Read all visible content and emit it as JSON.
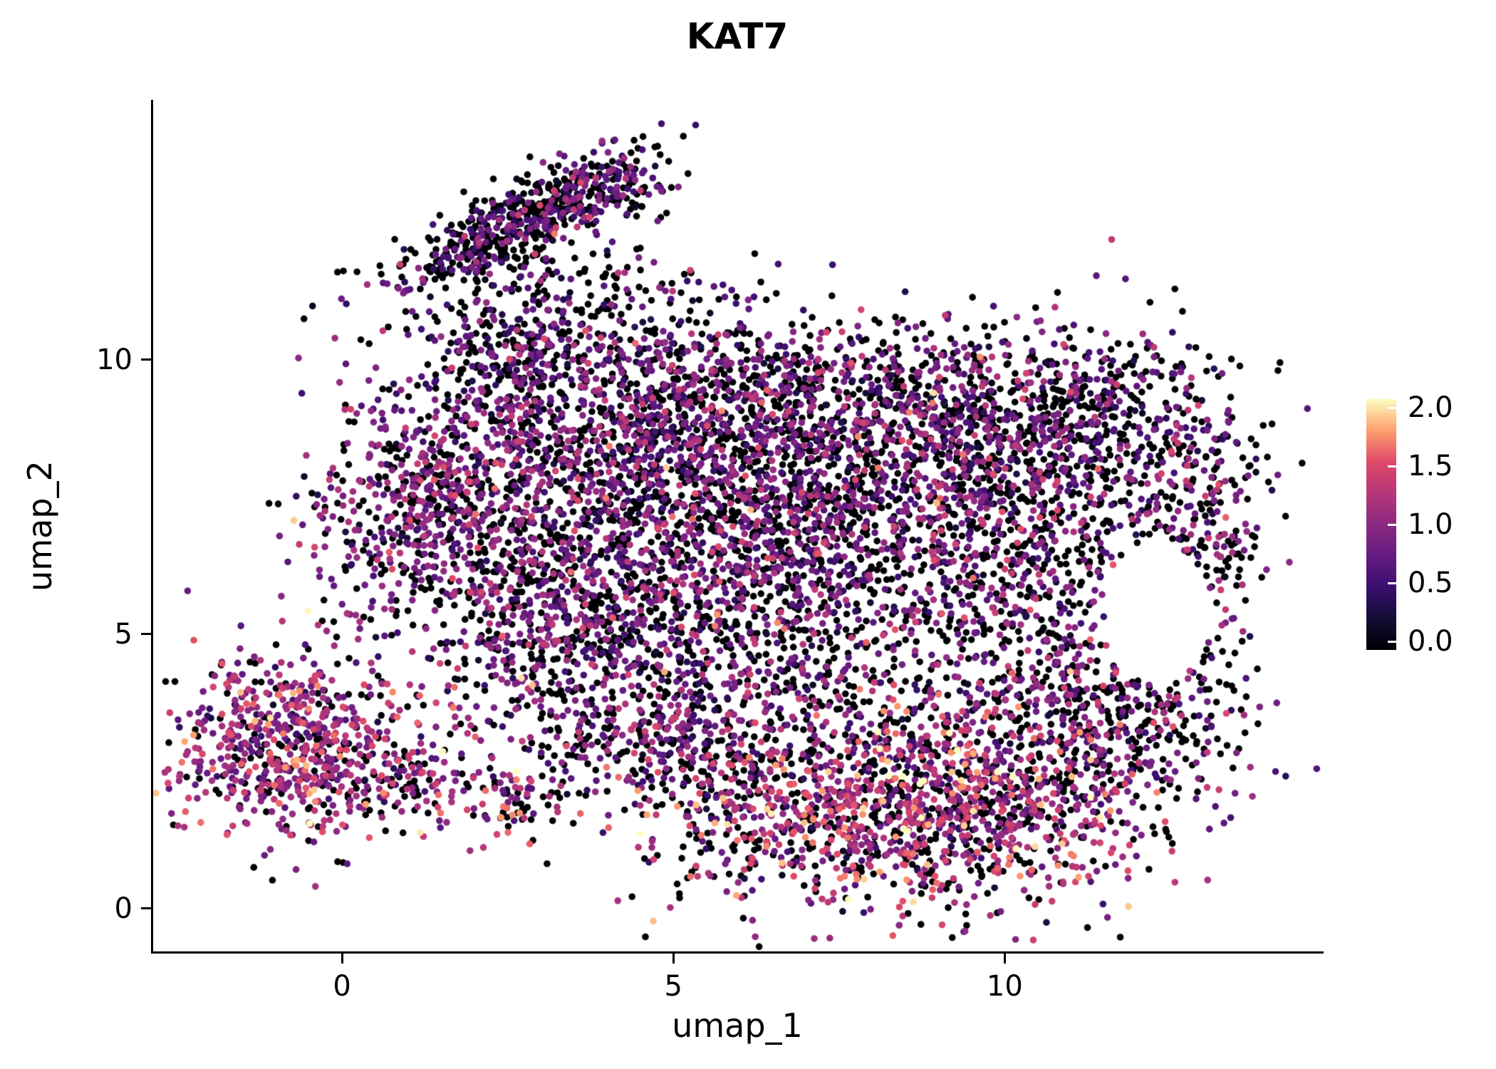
{
  "title": "KAT7",
  "chart_data": {
    "type": "scatter",
    "title": "KAT7",
    "xlabel": "umap_1",
    "ylabel": "umap_2",
    "xlim": [
      -2.85,
      14.78
    ],
    "ylim": [
      -0.78,
      14.74
    ],
    "xticks": {
      "values": [
        0,
        5,
        10
      ],
      "labels": [
        "0",
        "5",
        "10"
      ]
    },
    "yticks": {
      "values": [
        0,
        5,
        10
      ],
      "labels": [
        "0",
        "5",
        "10"
      ]
    },
    "grid": false,
    "legend_position": "right",
    "point_radius_px": 4.8,
    "seed": 20,
    "colorbar": {
      "vmin": 0,
      "vmax": 2,
      "tick_values": [
        2.0,
        1.5,
        1.0,
        0.5,
        0.0
      ],
      "tick_labels": [
        "2.0",
        "1.5",
        "1.0",
        "0.5",
        "0.0"
      ]
    },
    "colormap": {
      "name": "magma",
      "stops": [
        {
          "t": 0.0,
          "color": "#000004"
        },
        {
          "t": 0.125,
          "color": "#140e36"
        },
        {
          "t": 0.25,
          "color": "#3b0f70"
        },
        {
          "t": 0.375,
          "color": "#641a80"
        },
        {
          "t": 0.5,
          "color": "#8c2981"
        },
        {
          "t": 0.625,
          "color": "#b73779"
        },
        {
          "t": 0.75,
          "color": "#de4968"
        },
        {
          "t": 0.875,
          "color": "#fe9f6d"
        },
        {
          "t": 1.0,
          "color": "#fcfdbf"
        }
      ]
    },
    "holes": [
      {
        "cx": 12.3,
        "cy": 5.4,
        "rx": 0.8,
        "ry": 1.3
      }
    ],
    "clusters": [
      {
        "name": "top-arm",
        "cx": 2.55,
        "cy": 12.4,
        "sx": 1.05,
        "sy": 0.34,
        "rot": 33,
        "n": 520,
        "p0": 0.55,
        "mu": 0.7,
        "sigma": 0.3
      },
      {
        "name": "arm-head",
        "cx": 3.95,
        "cy": 13.1,
        "sx": 0.45,
        "sy": 0.3,
        "rot": 20,
        "n": 140,
        "p0": 0.5,
        "mu": 0.75,
        "sigma": 0.3
      },
      {
        "name": "arm-trail",
        "cx": 3.5,
        "cy": 10.9,
        "sx": 0.95,
        "sy": 0.6,
        "rot": 25,
        "n": 150,
        "p0": 0.6,
        "mu": 0.65,
        "sigma": 0.3
      },
      {
        "name": "arm-right-dots",
        "cx": 5.3,
        "cy": 10.9,
        "sx": 0.5,
        "sy": 0.5,
        "rot": 0,
        "n": 28,
        "p0": 0.6,
        "mu": 0.6,
        "sigma": 0.3
      },
      {
        "name": "neck",
        "cx": 2.6,
        "cy": 10.0,
        "sx": 0.65,
        "sy": 0.55,
        "rot": 0,
        "n": 170,
        "p0": 0.55,
        "mu": 0.7,
        "sigma": 0.3
      },
      {
        "name": "left-lobe",
        "cx": 1.5,
        "cy": 7.3,
        "sx": 0.95,
        "sy": 1.05,
        "rot": 0,
        "n": 620,
        "p0": 0.38,
        "mu": 0.9,
        "sigma": 0.3
      },
      {
        "name": "upper-mid",
        "cx": 4.4,
        "cy": 8.5,
        "sx": 1.5,
        "sy": 1.05,
        "rot": 0,
        "n": 950,
        "p0": 0.44,
        "mu": 0.82,
        "sigma": 0.32
      },
      {
        "name": "top-edge",
        "cx": 7.0,
        "cy": 9.6,
        "sx": 2.2,
        "sy": 0.55,
        "rot": 0,
        "n": 430,
        "p0": 0.5,
        "mu": 0.78,
        "sigma": 0.3
      },
      {
        "name": "center",
        "cx": 6.2,
        "cy": 6.3,
        "sx": 1.9,
        "sy": 1.6,
        "rot": 0,
        "n": 1450,
        "p0": 0.44,
        "mu": 0.82,
        "sigma": 0.33
      },
      {
        "name": "upper-right",
        "cx": 8.9,
        "cy": 8.1,
        "sx": 1.9,
        "sy": 1.15,
        "rot": 0,
        "n": 1150,
        "p0": 0.44,
        "mu": 0.82,
        "sigma": 0.33
      },
      {
        "name": "right-top-corner",
        "cx": 11.2,
        "cy": 9.0,
        "sx": 1.1,
        "sy": 0.8,
        "rot": 0,
        "n": 380,
        "p0": 0.55,
        "mu": 0.72,
        "sigma": 0.3
      },
      {
        "name": "far-right",
        "cx": 12.85,
        "cy": 6.4,
        "sx": 0.55,
        "sy": 1.5,
        "rot": 0,
        "n": 300,
        "p0": 0.5,
        "mu": 0.82,
        "sigma": 0.32
      },
      {
        "name": "right-mid",
        "cx": 10.4,
        "cy": 5.4,
        "sx": 0.95,
        "sy": 1.15,
        "rot": 0,
        "n": 430,
        "p0": 0.5,
        "mu": 0.8,
        "sigma": 0.32
      },
      {
        "name": "right-lower-arc",
        "cx": 11.7,
        "cy": 3.5,
        "sx": 1.0,
        "sy": 0.75,
        "rot": -30,
        "n": 300,
        "p0": 0.45,
        "mu": 0.9,
        "sigma": 0.35
      },
      {
        "name": "mid-left",
        "cx": 3.3,
        "cy": 5.2,
        "sx": 1.15,
        "sy": 0.95,
        "rot": 0,
        "n": 520,
        "p0": 0.44,
        "mu": 0.82,
        "sigma": 0.32
      },
      {
        "name": "diag-band",
        "cx": 4.9,
        "cy": 3.0,
        "sx": 1.5,
        "sy": 0.55,
        "rot": -12,
        "n": 300,
        "p0": 0.48,
        "mu": 0.85,
        "sigma": 0.35
      },
      {
        "name": "sparse-gap",
        "cx": 6.8,
        "cy": 3.9,
        "sx": 1.6,
        "sy": 0.8,
        "rot": 0,
        "n": 240,
        "p0": 0.5,
        "mu": 0.85,
        "sigma": 0.35
      },
      {
        "name": "bottom-band",
        "cx": 7.8,
        "cy": 1.7,
        "sx": 1.9,
        "sy": 0.85,
        "rot": 0,
        "n": 1050,
        "p0": 0.34,
        "mu": 1.12,
        "sigma": 0.4
      },
      {
        "name": "bottom-right",
        "cx": 10.2,
        "cy": 2.2,
        "sx": 1.15,
        "sy": 0.95,
        "rot": 0,
        "n": 470,
        "p0": 0.38,
        "mu": 1.05,
        "sigma": 0.4
      },
      {
        "name": "bottom-left-cluster",
        "cx": -0.75,
        "cy": 3.0,
        "sx": 0.92,
        "sy": 0.85,
        "rot": 0,
        "n": 680,
        "p0": 0.22,
        "mu": 1.05,
        "sigma": 0.35
      },
      {
        "name": "bl-tail",
        "cx": 0.9,
        "cy": 2.3,
        "sx": 0.6,
        "sy": 0.4,
        "rot": 0,
        "n": 110,
        "p0": 0.3,
        "mu": 1.0,
        "sigma": 0.35
      },
      {
        "name": "mid-bottom-dots",
        "cx": 2.6,
        "cy": 1.9,
        "sx": 0.5,
        "sy": 0.35,
        "rot": 0,
        "n": 70,
        "p0": 0.35,
        "mu": 1.1,
        "sigma": 0.45
      }
    ]
  }
}
